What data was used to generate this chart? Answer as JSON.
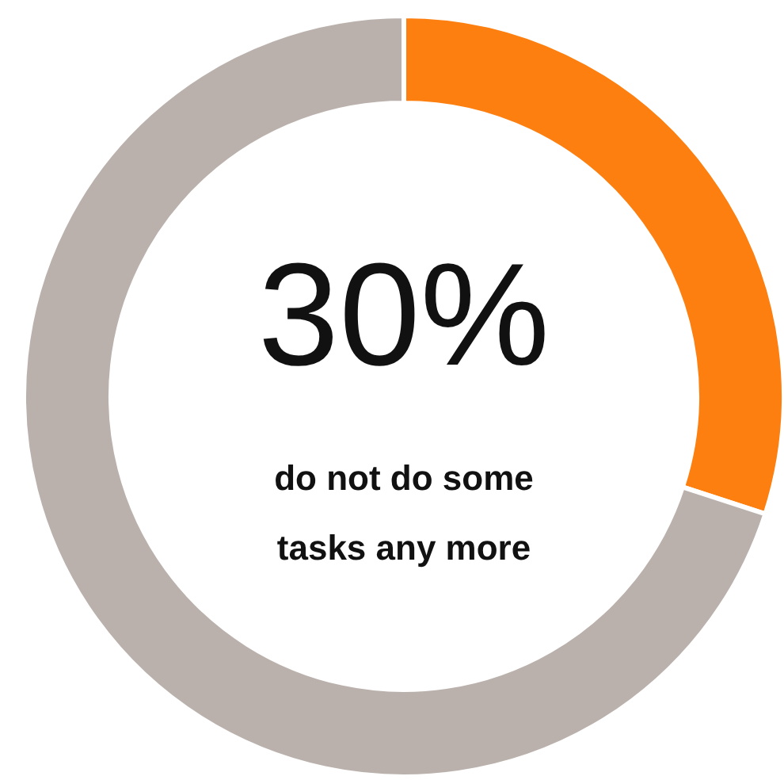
{
  "chart_data": {
    "type": "donut",
    "categories": [
      null,
      null
    ],
    "values": [
      30,
      70
    ],
    "colors": [
      "#fd7f0f",
      "#bab1ac"
    ],
    "value_labels": [
      "30%",
      null
    ],
    "annotations": [
      "do not do some tasks any more"
    ],
    "legend": false
  }
}
